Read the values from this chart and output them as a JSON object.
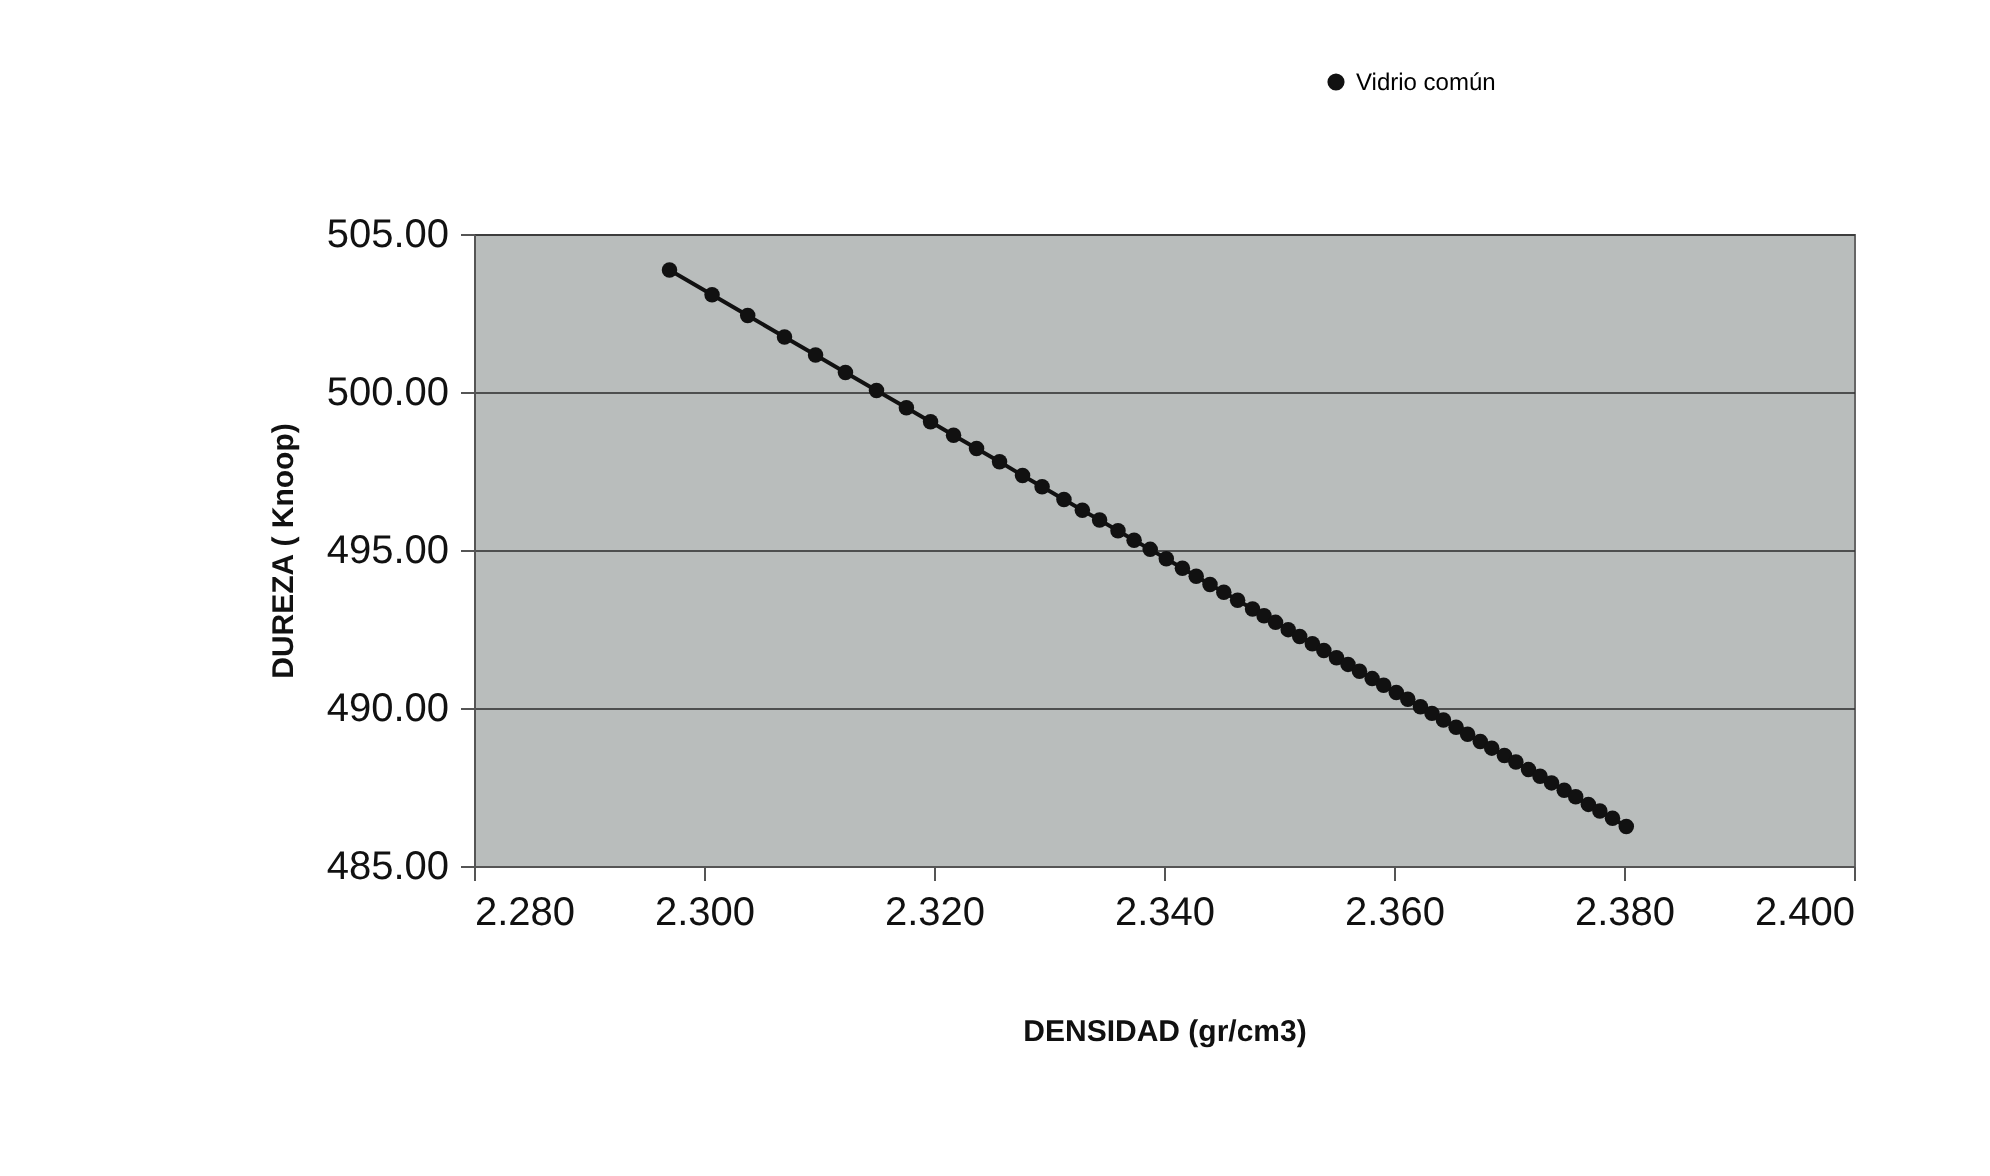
{
  "chart_data": {
    "type": "line",
    "xlabel": "DENSIDAD (gr/cm3)",
    "ylabel": "DUREZA ( Knoop)",
    "xlim": [
      2.28,
      2.4
    ],
    "xticks": [
      {
        "value": 2.28,
        "label": "2.280"
      },
      {
        "value": 2.3,
        "label": "2.300"
      },
      {
        "value": 2.32,
        "label": "2.320"
      },
      {
        "value": 2.34,
        "label": "2.340"
      },
      {
        "value": 2.36,
        "label": "2.360"
      },
      {
        "value": 2.38,
        "label": "2.380"
      },
      {
        "value": 2.4,
        "label": "2.400"
      }
    ],
    "ylim": [
      485,
      505
    ],
    "yticks": [
      {
        "value": 485,
        "label": "485.00"
      },
      {
        "value": 490,
        "label": "490.00"
      },
      {
        "value": 495,
        "label": "495.00"
      },
      {
        "value": 500,
        "label": "500.00"
      },
      {
        "value": 505,
        "label": "505.00"
      }
    ],
    "grid": "y",
    "legend": "top right",
    "marker": "circle",
    "line_style": "solid",
    "series": [
      {
        "name": "Vidrio común",
        "color": "#111111",
        "x": [
          2.297,
          2.3007,
          2.3038,
          2.307,
          2.3097,
          2.3123,
          2.315,
          2.3176,
          2.3197,
          2.3217,
          2.3237,
          2.3257,
          2.3277,
          2.3294,
          2.3313,
          2.3329,
          2.3344,
          2.336,
          2.3374,
          2.3388,
          2.3402,
          2.3416,
          2.3428,
          2.344,
          2.3452,
          2.3464,
          2.3477,
          2.3487,
          2.3497,
          2.3508,
          2.3518,
          2.3529,
          2.3539,
          2.355,
          2.356,
          2.357,
          2.3581,
          2.3591,
          2.3602,
          2.3612,
          2.3623,
          2.3633,
          2.3643,
          2.3654,
          2.3664,
          2.3675,
          2.3685,
          2.3696,
          2.3706,
          2.3717,
          2.3727,
          2.3737,
          2.3748,
          2.3758,
          2.3769,
          2.3779,
          2.379,
          2.3802
        ],
        "values": [
          503.86,
          503.08,
          502.42,
          501.74,
          501.17,
          500.62,
          500.05,
          499.5,
          499.06,
          498.63,
          498.21,
          497.79,
          497.36,
          497.0,
          496.6,
          496.26,
          495.95,
          495.61,
          495.31,
          495.02,
          494.72,
          494.42,
          494.17,
          493.91,
          493.66,
          493.41,
          493.13,
          492.92,
          492.71,
          492.48,
          492.26,
          492.03,
          491.82,
          491.59,
          491.38,
          491.16,
          490.93,
          490.72,
          490.49,
          490.28,
          490.04,
          489.83,
          489.62,
          489.39,
          489.17,
          488.94,
          488.73,
          488.5,
          488.29,
          488.05,
          487.84,
          487.63,
          487.4,
          487.19,
          486.95,
          486.74,
          486.51,
          486.25
        ]
      }
    ]
  }
}
